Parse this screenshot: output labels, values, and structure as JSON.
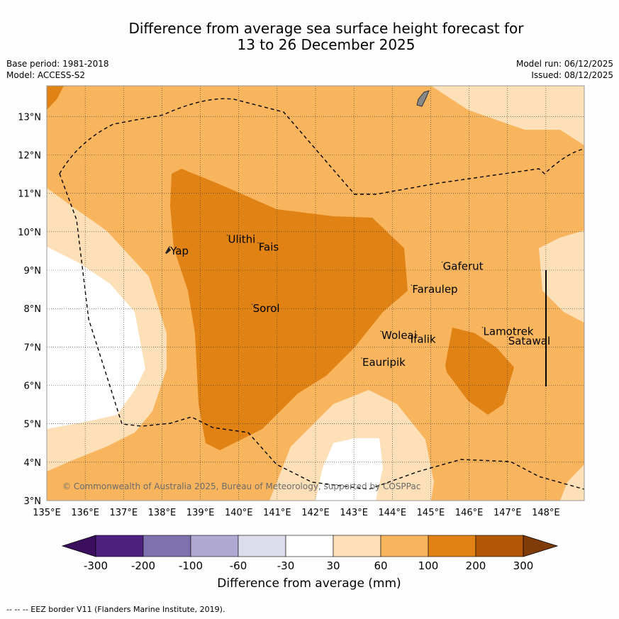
{
  "title": {
    "line1": "Difference from average sea surface height forecast for",
    "line2": "13 to 26 December 2025"
  },
  "meta": {
    "base_period": "Base period: 1981-2018",
    "model": "Model: ACCESS-S2",
    "model_run": "Model run: 06/12/2025",
    "issued": "Issued: 08/12/2025"
  },
  "map": {
    "x_ticks": [
      "135°E",
      "136°E",
      "137°E",
      "138°E",
      "139°E",
      "140°E",
      "141°E",
      "142°E",
      "143°E",
      "144°E",
      "145°E",
      "146°E",
      "147°E",
      "148°E"
    ],
    "y_ticks": [
      "13°N",
      "12°N",
      "11°N",
      "10°N",
      "9°N",
      "8°N",
      "7°N",
      "6°N",
      "5°N",
      "4°N",
      "3°N"
    ],
    "places": [
      {
        "name": "Yap",
        "lon": 138.2,
        "lat": 9.5
      },
      {
        "name": "Ulithi",
        "lon": 139.7,
        "lat": 9.8
      },
      {
        "name": "Fais",
        "lon": 140.5,
        "lat": 9.6
      },
      {
        "name": "Sorol",
        "lon": 140.35,
        "lat": 8.0
      },
      {
        "name": "Gaferut",
        "lon": 145.3,
        "lat": 9.1
      },
      {
        "name": "Faraulep",
        "lon": 144.5,
        "lat": 8.5
      },
      {
        "name": "Woleai",
        "lon": 143.7,
        "lat": 7.3
      },
      {
        "name": "Ifalik",
        "lon": 144.45,
        "lat": 7.2
      },
      {
        "name": "Lamotrek",
        "lon": 146.35,
        "lat": 7.4
      },
      {
        "name": "Satawal",
        "lon": 147.0,
        "lat": 7.15
      },
      {
        "name": "Eauripik",
        "lon": 143.2,
        "lat": 6.6
      }
    ],
    "copyright": "© Commonwealth of Australia 2025, Bureau of Meteorology, supported by COSPPac"
  },
  "colorbar": {
    "labels": [
      "-300",
      "-200",
      "-100",
      "-60",
      "-30",
      "30",
      "60",
      "100",
      "200",
      "300"
    ],
    "colors": [
      "#3b0f5e",
      "#4e2181",
      "#7f71ad",
      "#b0a9d2",
      "#dcdcec",
      "#ffffff",
      "#fde0b8",
      "#f8b55e",
      "#e08214",
      "#b35806",
      "#7f3b08"
    ],
    "title": "Difference from average (mm)"
  },
  "footer": "--  --  -- EEZ border V11 (Flanders Marine Institute, 2019)."
}
